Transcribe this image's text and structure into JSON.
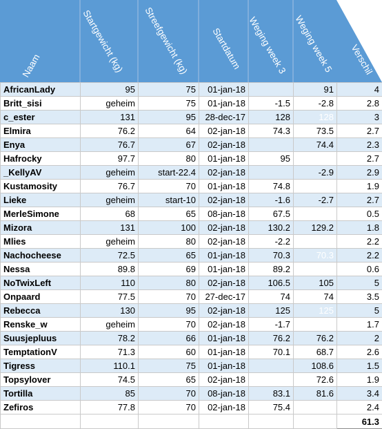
{
  "headers": [
    "Naam",
    "Startgewicht (kg)",
    "Streefgewicht (kg)",
    "Startdatum",
    "Weging week 3",
    "Weging week 5",
    "Verschil"
  ],
  "rows": [
    [
      "AfricanLady",
      "95",
      "75",
      "01-jan-18",
      "",
      "91",
      "4"
    ],
    [
      "Britt_sisi",
      "geheim",
      "75",
      "01-jan-18",
      "-1.5",
      "-2.8",
      "2.8"
    ],
    [
      "c_ester",
      "131",
      "95",
      "28-dec-17",
      "128",
      "128",
      "3"
    ],
    [
      "Elmira",
      "76.2",
      "64",
      "02-jan-18",
      "74.3",
      "73.5",
      "2.7"
    ],
    [
      "Enya",
      "76.7",
      "67",
      "02-jan-18",
      "",
      "74.4",
      "2.3"
    ],
    [
      "Hafrocky",
      "97.7",
      "80",
      "01-jan-18",
      "95",
      "",
      "2.7"
    ],
    [
      "_KellyAV",
      "geheim",
      "start-22.4",
      "02-jan-18",
      "",
      "-2.9",
      "2.9"
    ],
    [
      "Kustamosity",
      "76.7",
      "70",
      "01-jan-18",
      "74.8",
      "",
      "1.9"
    ],
    [
      "Lieke",
      "geheim",
      "start-10",
      "02-jan-18",
      "-1.6",
      "-2.7",
      "2.7"
    ],
    [
      "MerleSimone",
      "68",
      "65",
      "08-jan-18",
      "67.5",
      "",
      "0.5"
    ],
    [
      "Mizora",
      "131",
      "100",
      "02-jan-18",
      "130.2",
      "129.2",
      "1.8"
    ],
    [
      "Mlies",
      "geheim",
      "80",
      "02-jan-18",
      "-2.2",
      "",
      "2.2"
    ],
    [
      "Nachocheese",
      "72.5",
      "65",
      "01-jan-18",
      "70.3",
      "70.3",
      "2.2"
    ],
    [
      "Nessa",
      "89.8",
      "69",
      "01-jan-18",
      "89.2",
      "",
      "0.6"
    ],
    [
      "NoTwixLeft",
      "110",
      "80",
      "02-jan-18",
      "106.5",
      "105",
      "5"
    ],
    [
      "Onpaard",
      "77.5",
      "70",
      "27-dec-17",
      "74",
      "74",
      "3.5"
    ],
    [
      "Rebecca",
      "130",
      "95",
      "02-jan-18",
      "125",
      "125",
      "5"
    ],
    [
      "Renske_w",
      "geheim",
      "70",
      "02-jan-18",
      "-1.7",
      "",
      "1.7"
    ],
    [
      "Suusjepluus",
      "78.2",
      "66",
      "01-jan-18",
      "76.2",
      "76.2",
      "2"
    ],
    [
      "TemptationV",
      "71.3",
      "60",
      "01-jan-18",
      "70.1",
      "68.7",
      "2.6"
    ],
    [
      "Tigress",
      "110.1",
      "75",
      "01-jan-18",
      "",
      "108.6",
      "1.5"
    ],
    [
      "Topsylover",
      "74.5",
      "65",
      "02-jan-18",
      "",
      "72.6",
      "1.9"
    ],
    [
      "Tortilla",
      "85",
      "70",
      "08-jan-18",
      "83.1",
      "81.6",
      "3.4"
    ],
    [
      "Zefiros",
      "77.8",
      "70",
      "02-jan-18",
      "75.4",
      "",
      "2.4"
    ]
  ],
  "ghost_cells": [
    [
      2,
      5
    ],
    [
      12,
      5
    ],
    [
      16,
      5
    ]
  ],
  "total": "61.3",
  "colors": {
    "header_bg": "#5b9bd5",
    "band": "#ddebf7",
    "grid": "#c9c9c9"
  }
}
